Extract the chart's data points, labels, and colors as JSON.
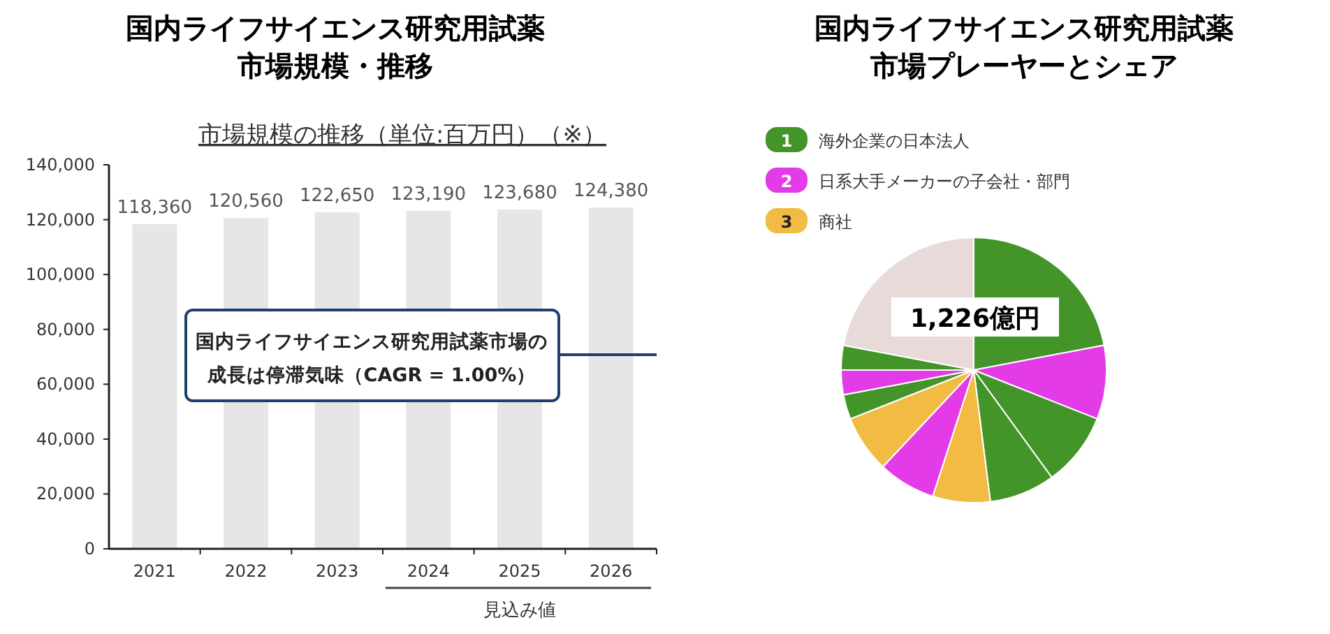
{
  "chart_data": [
    {
      "type": "bar",
      "title": "国内ライフサイエンス研究用試薬市場規模・推移",
      "subtitle": "市場規模の推移（単位:百万円）（※）",
      "categories": [
        "2021",
        "2022",
        "2023",
        "2024",
        "2025",
        "2026"
      ],
      "values": [
        118360,
        120560,
        122650,
        123190,
        123680,
        124380
      ],
      "value_labels": [
        "118,360",
        "120,560",
        "122,650",
        "123,190",
        "123,680",
        "124,380"
      ],
      "color": "#e6e6e6",
      "ylim": [
        0,
        140000
      ],
      "yticks": [
        0,
        {
          "value": 20000,
          "label": "20,000"
        },
        {
          "value": 40000,
          "label": "40,000"
        },
        {
          "value": 60000,
          "label": "60,000"
        },
        {
          "value": 80000,
          "label": "80,000"
        },
        {
          "value": 100000,
          "label": "100,000"
        },
        {
          "value": 120000,
          "label": "120,000"
        },
        {
          "value": 140000,
          "label": "140,000"
        }
      ],
      "annotations": [
        "国内ライフサイエンス研究用試薬市場の成長は停滞気味（CAGR = 1.00%）",
        "見込み値"
      ]
    },
    {
      "type": "pie",
      "title": "国内ライフサイエンス研究用試薬市場プレーヤーとシェア",
      "categories": [
        null,
        null,
        null,
        null,
        null,
        null,
        null,
        null,
        null,
        null,
        null
      ],
      "values": [
        22,
        9,
        9,
        8,
        7,
        7,
        7,
        3,
        3,
        3,
        22
      ],
      "colors": [
        "#43952a",
        "#e43be8",
        "#43952a",
        "#43952a",
        "#f2bc44",
        "#e43be8",
        "#f2bc44",
        "#43952a",
        "#e43be8",
        "#43952a",
        "#e8dad8"
      ],
      "annotations": [
        "1,226億円",
        "1 海外企業の日本法人",
        "2 日系大手メーカーの子会社・部門",
        "3 商社"
      ]
    }
  ]
}
